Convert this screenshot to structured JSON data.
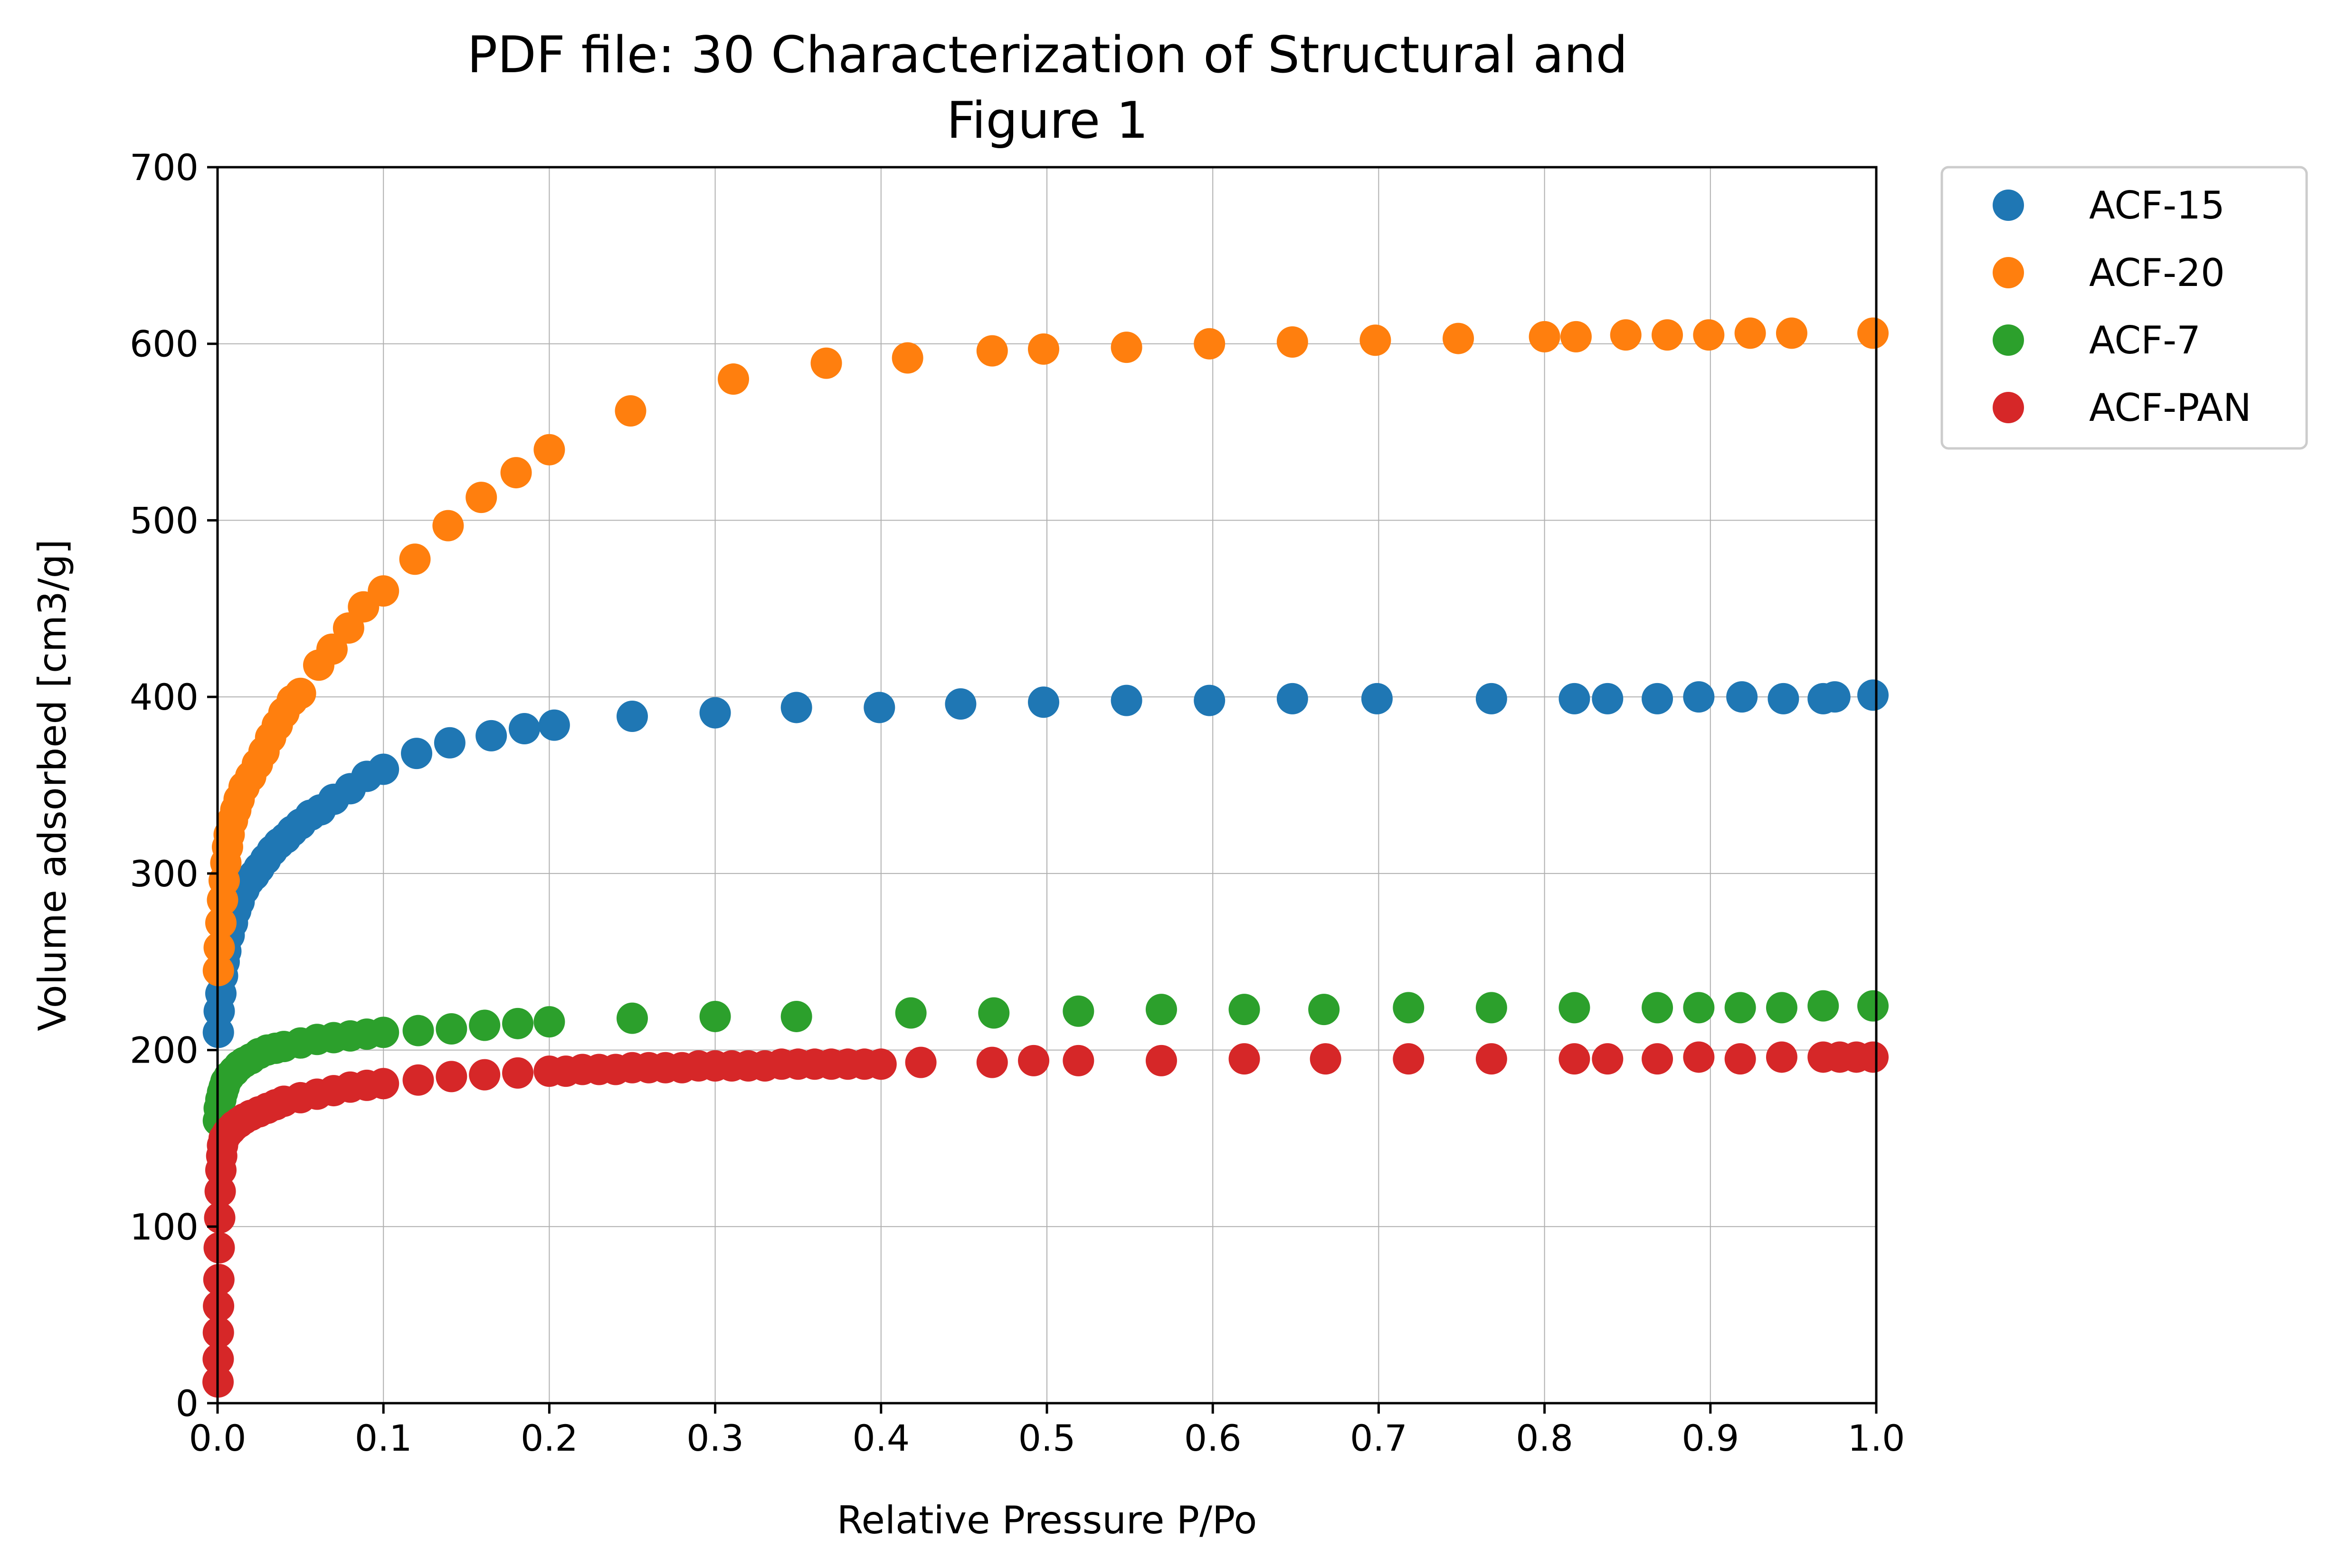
{
  "chart_data": {
    "type": "scatter",
    "title": "PDF file: 30 Characterization of Structural and",
    "subtitle": "Figure 1",
    "xlabel": "Relative Pressure P/Po",
    "ylabel": "Volume adsorbed [cm3/g]",
    "xlim": [
      0.0,
      1.0
    ],
    "ylim": [
      0,
      700
    ],
    "xticks": [
      "0.0",
      "0.1",
      "0.2",
      "0.3",
      "0.4",
      "0.5",
      "0.6",
      "0.7",
      "0.8",
      "0.9",
      "1.0"
    ],
    "yticks": [
      "0",
      "100",
      "200",
      "300",
      "400",
      "500",
      "600",
      "700"
    ],
    "grid": true,
    "legend_position": "outside-top-right",
    "series": [
      {
        "name": "ACF-15",
        "color": "#1f77b4",
        "points": [
          [
            0.0005,
            210
          ],
          [
            0.001,
            222
          ],
          [
            0.002,
            232
          ],
          [
            0.003,
            242
          ],
          [
            0.004,
            250
          ],
          [
            0.005,
            256
          ],
          [
            0.007,
            265
          ],
          [
            0.009,
            272
          ],
          [
            0.011,
            279
          ],
          [
            0.013,
            284
          ],
          [
            0.016,
            291
          ],
          [
            0.019,
            296
          ],
          [
            0.022,
            299
          ],
          [
            0.025,
            303
          ],
          [
            0.029,
            308
          ],
          [
            0.033,
            313
          ],
          [
            0.037,
            317
          ],
          [
            0.041,
            320
          ],
          [
            0.045,
            324
          ],
          [
            0.05,
            328
          ],
          [
            0.056,
            333
          ],
          [
            0.062,
            336
          ],
          [
            0.07,
            342
          ],
          [
            0.08,
            348
          ],
          [
            0.09,
            355
          ],
          [
            0.1,
            359
          ],
          [
            0.12,
            368
          ],
          [
            0.14,
            374
          ],
          [
            0.165,
            378
          ],
          [
            0.185,
            382
          ],
          [
            0.203,
            384
          ],
          [
            0.25,
            389
          ],
          [
            0.3,
            391
          ],
          [
            0.349,
            394
          ],
          [
            0.399,
            394
          ],
          [
            0.448,
            396
          ],
          [
            0.498,
            397
          ],
          [
            0.548,
            398
          ],
          [
            0.598,
            398
          ],
          [
            0.648,
            399
          ],
          [
            0.699,
            399
          ],
          [
            0.768,
            399
          ],
          [
            0.818,
            399
          ],
          [
            0.838,
            399
          ],
          [
            0.868,
            399
          ],
          [
            0.893,
            400
          ],
          [
            0.919,
            400
          ],
          [
            0.944,
            399
          ],
          [
            0.968,
            399
          ],
          [
            0.975,
            400
          ],
          [
            0.998,
            401
          ]
        ]
      },
      {
        "name": "ACF-20",
        "color": "#ff7f0e",
        "points": [
          [
            0.0005,
            245
          ],
          [
            0.001,
            258
          ],
          [
            0.002,
            272
          ],
          [
            0.003,
            285
          ],
          [
            0.004,
            296
          ],
          [
            0.005,
            306
          ],
          [
            0.006,
            315
          ],
          [
            0.007,
            322
          ],
          [
            0.009,
            330
          ],
          [
            0.011,
            336
          ],
          [
            0.013,
            342
          ],
          [
            0.016,
            349
          ],
          [
            0.02,
            355
          ],
          [
            0.024,
            362
          ],
          [
            0.028,
            369
          ],
          [
            0.032,
            377
          ],
          [
            0.036,
            384
          ],
          [
            0.04,
            391
          ],
          [
            0.045,
            398
          ],
          [
            0.05,
            402
          ],
          [
            0.061,
            418
          ],
          [
            0.069,
            427
          ],
          [
            0.079,
            439
          ],
          [
            0.088,
            451
          ],
          [
            0.1,
            460
          ],
          [
            0.119,
            478
          ],
          [
            0.139,
            497
          ],
          [
            0.159,
            513
          ],
          [
            0.18,
            527
          ],
          [
            0.2,
            540
          ],
          [
            0.249,
            562
          ],
          [
            0.311,
            580
          ],
          [
            0.367,
            589
          ],
          [
            0.416,
            592
          ],
          [
            0.467,
            596
          ],
          [
            0.498,
            597
          ],
          [
            0.548,
            598
          ],
          [
            0.598,
            600
          ],
          [
            0.648,
            601
          ],
          [
            0.698,
            602
          ],
          [
            0.748,
            603
          ],
          [
            0.8,
            604
          ],
          [
            0.819,
            604
          ],
          [
            0.849,
            605
          ],
          [
            0.874,
            605
          ],
          [
            0.899,
            605
          ],
          [
            0.924,
            606
          ],
          [
            0.949,
            606
          ],
          [
            0.998,
            606
          ]
        ]
      },
      {
        "name": "ACF-7",
        "color": "#2ca02c",
        "points": [
          [
            0.0005,
            160
          ],
          [
            0.001,
            167
          ],
          [
            0.002,
            172
          ],
          [
            0.003,
            176
          ],
          [
            0.004,
            179
          ],
          [
            0.005,
            182
          ],
          [
            0.007,
            185
          ],
          [
            0.01,
            188
          ],
          [
            0.013,
            191
          ],
          [
            0.016,
            193
          ],
          [
            0.02,
            195
          ],
          [
            0.025,
            198
          ],
          [
            0.03,
            200
          ],
          [
            0.035,
            201
          ],
          [
            0.04,
            202
          ],
          [
            0.05,
            204
          ],
          [
            0.06,
            206
          ],
          [
            0.07,
            207
          ],
          [
            0.08,
            208
          ],
          [
            0.09,
            209
          ],
          [
            0.1,
            210
          ],
          [
            0.121,
            211
          ],
          [
            0.141,
            212
          ],
          [
            0.161,
            214
          ],
          [
            0.181,
            215
          ],
          [
            0.2,
            216
          ],
          [
            0.25,
            218
          ],
          [
            0.3,
            219
          ],
          [
            0.349,
            219
          ],
          [
            0.418,
            221
          ],
          [
            0.468,
            221
          ],
          [
            0.519,
            222
          ],
          [
            0.569,
            223
          ],
          [
            0.619,
            223
          ],
          [
            0.667,
            223
          ],
          [
            0.718,
            224
          ],
          [
            0.768,
            224
          ],
          [
            0.818,
            224
          ],
          [
            0.868,
            224
          ],
          [
            0.893,
            224
          ],
          [
            0.918,
            224
          ],
          [
            0.943,
            224
          ],
          [
            0.968,
            225
          ],
          [
            0.998,
            225
          ]
        ]
      },
      {
        "name": "ACF-PAN",
        "color": "#d62728",
        "points": [
          [
            0.0003,
            12
          ],
          [
            0.0004,
            25
          ],
          [
            0.0005,
            40
          ],
          [
            0.0006,
            55
          ],
          [
            0.0008,
            70
          ],
          [
            0.001,
            88
          ],
          [
            0.0013,
            105
          ],
          [
            0.0016,
            120
          ],
          [
            0.002,
            132
          ],
          [
            0.0025,
            140
          ],
          [
            0.003,
            146
          ],
          [
            0.004,
            150
          ],
          [
            0.006,
            153
          ],
          [
            0.008,
            155
          ],
          [
            0.01,
            157
          ],
          [
            0.013,
            159
          ],
          [
            0.016,
            161
          ],
          [
            0.02,
            163
          ],
          [
            0.025,
            165
          ],
          [
            0.03,
            167
          ],
          [
            0.035,
            169
          ],
          [
            0.04,
            171
          ],
          [
            0.05,
            173
          ],
          [
            0.06,
            175
          ],
          [
            0.07,
            177
          ],
          [
            0.08,
            179
          ],
          [
            0.09,
            180
          ],
          [
            0.1,
            181
          ],
          [
            0.121,
            183
          ],
          [
            0.141,
            185
          ],
          [
            0.161,
            186
          ],
          [
            0.181,
            187
          ],
          [
            0.2,
            188
          ],
          [
            0.21,
            188
          ],
          [
            0.22,
            189
          ],
          [
            0.23,
            189
          ],
          [
            0.24,
            189
          ],
          [
            0.25,
            190
          ],
          [
            0.26,
            190
          ],
          [
            0.27,
            190
          ],
          [
            0.28,
            190
          ],
          [
            0.29,
            191
          ],
          [
            0.3,
            191
          ],
          [
            0.31,
            191
          ],
          [
            0.32,
            191
          ],
          [
            0.33,
            191
          ],
          [
            0.34,
            192
          ],
          [
            0.35,
            192
          ],
          [
            0.36,
            192
          ],
          [
            0.37,
            192
          ],
          [
            0.38,
            192
          ],
          [
            0.39,
            192
          ],
          [
            0.4,
            192
          ],
          [
            0.424,
            193
          ],
          [
            0.467,
            193
          ],
          [
            0.492,
            194
          ],
          [
            0.519,
            194
          ],
          [
            0.569,
            194
          ],
          [
            0.619,
            195
          ],
          [
            0.668,
            195
          ],
          [
            0.718,
            195
          ],
          [
            0.768,
            195
          ],
          [
            0.818,
            195
          ],
          [
            0.838,
            195
          ],
          [
            0.868,
            195
          ],
          [
            0.893,
            196
          ],
          [
            0.918,
            195
          ],
          [
            0.943,
            196
          ],
          [
            0.968,
            196
          ],
          [
            0.978,
            196
          ],
          [
            0.988,
            196
          ],
          [
            0.998,
            196
          ]
        ]
      }
    ]
  }
}
